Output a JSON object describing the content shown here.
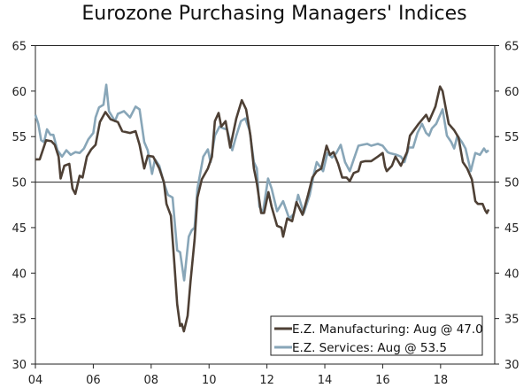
{
  "chart_data": {
    "type": "line",
    "title": "Eurozone Purchasing Managers' Indices",
    "xlabel": "",
    "ylabel": "",
    "xlim": [
      2004.0,
      2019.87
    ],
    "ylim": [
      30,
      65
    ],
    "x_ticks": [
      2004,
      2006,
      2008,
      2010,
      2012,
      2014,
      2016,
      2018
    ],
    "x_tick_labels": [
      "04",
      "06",
      "08",
      "10",
      "12",
      "14",
      "16",
      "18"
    ],
    "y_ticks": [
      30,
      35,
      40,
      45,
      50,
      55,
      60,
      65
    ],
    "y_tick_labels": [
      "30",
      "35",
      "40",
      "45",
      "50",
      "55",
      "60",
      "65"
    ],
    "reference_line": 50,
    "grid": false,
    "legend_position": "bottom-right",
    "series": [
      {
        "name": "E.Z. Manufacturing: Aug @ 47.0",
        "color": "#4e4035",
        "points": [
          [
            2004.0,
            52.5
          ],
          [
            2004.15,
            52.5
          ],
          [
            2004.37,
            54.6
          ],
          [
            2004.55,
            54.5
          ],
          [
            2004.67,
            54.1
          ],
          [
            2004.8,
            52.8
          ],
          [
            2004.87,
            50.4
          ],
          [
            2005.0,
            51.8
          ],
          [
            2005.17,
            52.0
          ],
          [
            2005.28,
            49.3
          ],
          [
            2005.38,
            48.7
          ],
          [
            2005.53,
            50.7
          ],
          [
            2005.63,
            50.5
          ],
          [
            2005.78,
            52.8
          ],
          [
            2005.93,
            53.6
          ],
          [
            2006.08,
            54.1
          ],
          [
            2006.23,
            56.6
          ],
          [
            2006.42,
            57.7
          ],
          [
            2006.6,
            56.9
          ],
          [
            2006.85,
            56.6
          ],
          [
            2007.0,
            55.6
          ],
          [
            2007.27,
            55.4
          ],
          [
            2007.46,
            55.6
          ],
          [
            2007.6,
            54.1
          ],
          [
            2007.76,
            51.5
          ],
          [
            2007.88,
            52.9
          ],
          [
            2008.07,
            52.8
          ],
          [
            2008.28,
            51.5
          ],
          [
            2008.44,
            50.0
          ],
          [
            2008.53,
            47.6
          ],
          [
            2008.68,
            46.3
          ],
          [
            2008.8,
            41.1
          ],
          [
            2008.9,
            36.6
          ],
          [
            2009.0,
            34.2
          ],
          [
            2009.06,
            34.4
          ],
          [
            2009.13,
            33.6
          ],
          [
            2009.26,
            35.3
          ],
          [
            2009.36,
            39.1
          ],
          [
            2009.5,
            43.7
          ],
          [
            2009.6,
            48.3
          ],
          [
            2009.75,
            50.3
          ],
          [
            2009.96,
            51.5
          ],
          [
            2010.1,
            52.8
          ],
          [
            2010.2,
            56.7
          ],
          [
            2010.33,
            57.6
          ],
          [
            2010.42,
            56.1
          ],
          [
            2010.57,
            56.7
          ],
          [
            2010.73,
            53.8
          ],
          [
            2010.94,
            57.0
          ],
          [
            2011.13,
            59.0
          ],
          [
            2011.28,
            58.0
          ],
          [
            2011.43,
            55.1
          ],
          [
            2011.55,
            51.5
          ],
          [
            2011.65,
            49.9
          ],
          [
            2011.8,
            46.6
          ],
          [
            2011.9,
            46.6
          ],
          [
            2012.05,
            48.9
          ],
          [
            2012.16,
            47.3
          ],
          [
            2012.35,
            45.2
          ],
          [
            2012.5,
            45.0
          ],
          [
            2012.56,
            44.0
          ],
          [
            2012.7,
            46.0
          ],
          [
            2012.87,
            45.7
          ],
          [
            2013.02,
            47.8
          ],
          [
            2013.23,
            46.4
          ],
          [
            2013.42,
            48.6
          ],
          [
            2013.57,
            50.5
          ],
          [
            2013.72,
            51.2
          ],
          [
            2013.88,
            51.5
          ],
          [
            2014.06,
            54.0
          ],
          [
            2014.18,
            53.0
          ],
          [
            2014.3,
            53.3
          ],
          [
            2014.46,
            52.0
          ],
          [
            2014.6,
            50.5
          ],
          [
            2014.75,
            50.5
          ],
          [
            2014.86,
            50.1
          ],
          [
            2015.0,
            51.0
          ],
          [
            2015.16,
            51.2
          ],
          [
            2015.25,
            52.2
          ],
          [
            2015.4,
            52.3
          ],
          [
            2015.6,
            52.3
          ],
          [
            2015.83,
            52.8
          ],
          [
            2016.0,
            53.2
          ],
          [
            2016.08,
            51.7
          ],
          [
            2016.14,
            51.2
          ],
          [
            2016.32,
            51.8
          ],
          [
            2016.44,
            52.8
          ],
          [
            2016.63,
            51.8
          ],
          [
            2016.84,
            53.3
          ],
          [
            2016.94,
            55.1
          ],
          [
            2017.24,
            56.4
          ],
          [
            2017.5,
            57.4
          ],
          [
            2017.6,
            56.7
          ],
          [
            2017.82,
            58.3
          ],
          [
            2017.98,
            60.5
          ],
          [
            2018.07,
            60.0
          ],
          [
            2018.28,
            56.4
          ],
          [
            2018.47,
            55.7
          ],
          [
            2018.62,
            54.9
          ],
          [
            2018.77,
            52.2
          ],
          [
            2018.92,
            51.5
          ],
          [
            2019.08,
            50.3
          ],
          [
            2019.2,
            47.9
          ],
          [
            2019.29,
            47.6
          ],
          [
            2019.45,
            47.6
          ],
          [
            2019.54,
            46.9
          ],
          [
            2019.6,
            46.6
          ],
          [
            2019.66,
            47.0
          ]
        ]
      },
      {
        "name": "E.Z. Services: Aug @ 53.5",
        "color": "#88a6b8",
        "points": [
          [
            2004.0,
            57.4
          ],
          [
            2004.1,
            56.4
          ],
          [
            2004.2,
            54.6
          ],
          [
            2004.3,
            54.4
          ],
          [
            2004.4,
            55.8
          ],
          [
            2004.52,
            55.2
          ],
          [
            2004.62,
            55.2
          ],
          [
            2004.76,
            53.5
          ],
          [
            2004.92,
            52.8
          ],
          [
            2005.07,
            53.5
          ],
          [
            2005.22,
            53.0
          ],
          [
            2005.38,
            53.3
          ],
          [
            2005.53,
            53.2
          ],
          [
            2005.68,
            53.7
          ],
          [
            2005.83,
            54.7
          ],
          [
            2006.0,
            55.4
          ],
          [
            2006.08,
            57.1
          ],
          [
            2006.2,
            58.2
          ],
          [
            2006.35,
            58.5
          ],
          [
            2006.45,
            60.7
          ],
          [
            2006.54,
            57.8
          ],
          [
            2006.75,
            56.7
          ],
          [
            2006.85,
            57.5
          ],
          [
            2007.06,
            57.8
          ],
          [
            2007.27,
            57.1
          ],
          [
            2007.46,
            58.3
          ],
          [
            2007.6,
            58.0
          ],
          [
            2007.76,
            54.4
          ],
          [
            2007.88,
            53.5
          ],
          [
            2008.03,
            50.9
          ],
          [
            2008.13,
            52.5
          ],
          [
            2008.28,
            51.8
          ],
          [
            2008.44,
            49.9
          ],
          [
            2008.58,
            48.6
          ],
          [
            2008.74,
            48.3
          ],
          [
            2008.9,
            42.5
          ],
          [
            2009.0,
            42.3
          ],
          [
            2009.14,
            39.2
          ],
          [
            2009.3,
            44.0
          ],
          [
            2009.4,
            44.7
          ],
          [
            2009.5,
            45.0
          ],
          [
            2009.6,
            49.3
          ],
          [
            2009.8,
            52.8
          ],
          [
            2009.96,
            53.6
          ],
          [
            2010.05,
            52.2
          ],
          [
            2010.2,
            55.1
          ],
          [
            2010.36,
            56.1
          ],
          [
            2010.5,
            55.9
          ],
          [
            2010.62,
            55.8
          ],
          [
            2010.8,
            53.5
          ],
          [
            2010.94,
            55.1
          ],
          [
            2011.1,
            56.7
          ],
          [
            2011.25,
            57.0
          ],
          [
            2011.4,
            55.7
          ],
          [
            2011.55,
            52.2
          ],
          [
            2011.65,
            51.5
          ],
          [
            2011.74,
            47.3
          ],
          [
            2011.86,
            46.6
          ],
          [
            2012.04,
            50.4
          ],
          [
            2012.16,
            49.3
          ],
          [
            2012.35,
            46.8
          ],
          [
            2012.56,
            47.9
          ],
          [
            2012.77,
            46.0
          ],
          [
            2012.93,
            46.5
          ],
          [
            2013.08,
            48.6
          ],
          [
            2013.27,
            46.6
          ],
          [
            2013.48,
            48.6
          ],
          [
            2013.63,
            51.0
          ],
          [
            2013.72,
            52.2
          ],
          [
            2013.94,
            51.2
          ],
          [
            2014.09,
            53.2
          ],
          [
            2014.25,
            52.7
          ],
          [
            2014.4,
            53.2
          ],
          [
            2014.55,
            54.1
          ],
          [
            2014.7,
            52.2
          ],
          [
            2014.86,
            51.2
          ],
          [
            2015.0,
            52.5
          ],
          [
            2015.16,
            54.0
          ],
          [
            2015.3,
            54.1
          ],
          [
            2015.47,
            54.2
          ],
          [
            2015.6,
            54.0
          ],
          [
            2015.83,
            54.2
          ],
          [
            2016.0,
            54.0
          ],
          [
            2016.17,
            53.3
          ],
          [
            2016.23,
            53.2
          ],
          [
            2016.48,
            53.0
          ],
          [
            2016.63,
            52.8
          ],
          [
            2016.75,
            52.2
          ],
          [
            2016.9,
            53.8
          ],
          [
            2017.05,
            53.8
          ],
          [
            2017.2,
            55.4
          ],
          [
            2017.36,
            56.4
          ],
          [
            2017.5,
            55.4
          ],
          [
            2017.6,
            55.1
          ],
          [
            2017.7,
            55.9
          ],
          [
            2017.85,
            56.4
          ],
          [
            2018.07,
            58.0
          ],
          [
            2018.22,
            55.1
          ],
          [
            2018.37,
            54.4
          ],
          [
            2018.47,
            53.7
          ],
          [
            2018.58,
            55.1
          ],
          [
            2018.74,
            54.4
          ],
          [
            2018.86,
            53.7
          ],
          [
            2019.04,
            51.2
          ],
          [
            2019.2,
            53.2
          ],
          [
            2019.36,
            53.0
          ],
          [
            2019.5,
            53.7
          ],
          [
            2019.58,
            53.3
          ],
          [
            2019.66,
            53.5
          ]
        ]
      }
    ]
  }
}
